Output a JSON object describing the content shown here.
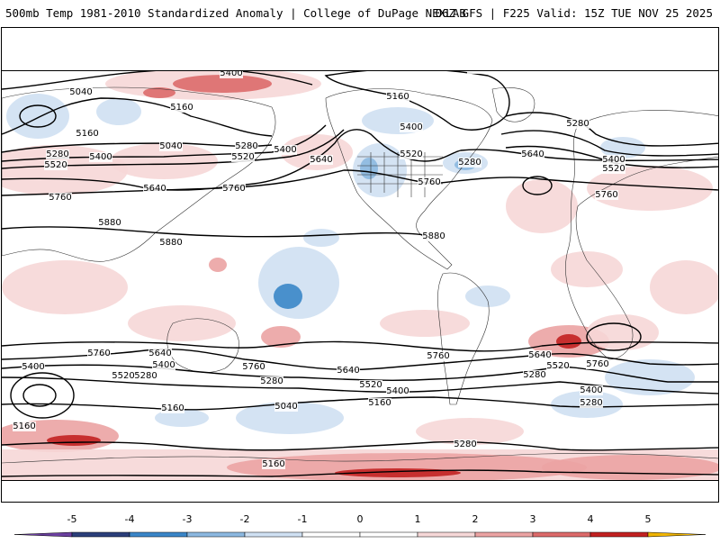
{
  "header": {
    "title_left": "500mb Temp 1981-2010 Standardized Anomaly | College of DuPage NEXLAB",
    "title_right": "06Z GFS | F225 Valid: 15Z TUE NOV 25 2025"
  },
  "colors": {
    "neg5": "#6b3fa0",
    "neg4": "#2b3f7a",
    "neg3": "#3a86c8",
    "neg2": "#8cb8e0",
    "neg1": "#cfe0f2",
    "zero": "#ffffff",
    "pos1": "#f6d7d7",
    "pos2": "#eba3a3",
    "pos3": "#dc6a6a",
    "pos4": "#c22121",
    "pos5": "#8a0a0a",
    "top": "#f0b400"
  },
  "colorbar": {
    "ticks": [
      "-5",
      "-4",
      "-3",
      "-2",
      "-1",
      "0",
      "1",
      "2",
      "3",
      "4",
      "5"
    ]
  },
  "contours": {
    "labels": [
      {
        "text": "5040"
      },
      {
        "text": "5400"
      },
      {
        "text": "5160"
      },
      {
        "text": "5280"
      },
      {
        "text": "5160"
      },
      {
        "text": "5040"
      },
      {
        "text": "5280"
      },
      {
        "text": "5400"
      },
      {
        "text": "5520"
      },
      {
        "text": "5520"
      },
      {
        "text": "5400"
      },
      {
        "text": "5640"
      },
      {
        "text": "5640"
      },
      {
        "text": "5760"
      },
      {
        "text": "5760"
      },
      {
        "text": "5880"
      },
      {
        "text": "5880"
      },
      {
        "text": "5280"
      },
      {
        "text": "5160"
      },
      {
        "text": "5400"
      },
      {
        "text": "5520"
      },
      {
        "text": "5280"
      },
      {
        "text": "5760"
      },
      {
        "text": "5880"
      },
      {
        "text": "5280"
      },
      {
        "text": "5640"
      },
      {
        "text": "5400"
      },
      {
        "text": "5520"
      },
      {
        "text": "5760"
      },
      {
        "text": "5760"
      },
      {
        "text": "5640"
      },
      {
        "text": "5400"
      },
      {
        "text": "5520"
      },
      {
        "text": "5400"
      },
      {
        "text": "5760"
      },
      {
        "text": "5280"
      },
      {
        "text": "5640"
      },
      {
        "text": "5520"
      },
      {
        "text": "5400"
      },
      {
        "text": "5160"
      },
      {
        "text": "5040"
      },
      {
        "text": "5160"
      },
      {
        "text": "5160"
      },
      {
        "text": "5280"
      },
      {
        "text": "5280"
      },
      {
        "text": "5760"
      },
      {
        "text": "5640"
      },
      {
        "text": "5520"
      },
      {
        "text": "5280"
      },
      {
        "text": "5760"
      },
      {
        "text": "5400"
      },
      {
        "text": "5160"
      },
      {
        "text": "5280"
      }
    ]
  }
}
